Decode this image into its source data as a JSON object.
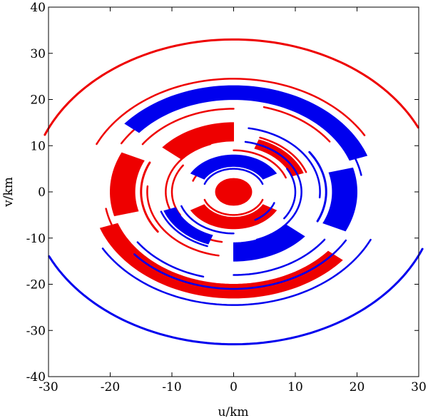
{
  "chart_data": {
    "type": "scatter",
    "title": "",
    "xlabel": "u/km",
    "ylabel": "v/km",
    "xlim": [
      -30,
      30
    ],
    "ylim": [
      -40,
      40
    ],
    "xticks": [
      -30,
      -20,
      -10,
      0,
      10,
      20,
      30
    ],
    "yticks": [
      -40,
      -30,
      -20,
      -10,
      0,
      10,
      20,
      30,
      40
    ],
    "xtick_labels": [
      "-30",
      "-20",
      "-10",
      "0",
      "10",
      "20",
      "30"
    ],
    "ytick_labels": [
      "-40",
      "-30",
      "-20",
      "-10",
      "0",
      "10",
      "20",
      "30",
      "40"
    ],
    "grid": false,
    "legend": "none",
    "colors": {
      "red": "#ee0000",
      "blue": "#0000ee"
    },
    "series": [
      {
        "color": "red",
        "arcs": [
          {
            "r": 33,
            "from": 25,
            "to": 158,
            "w": 3
          },
          {
            "r": 24.5,
            "from": 30,
            "to": 155,
            "w": 2.5
          },
          {
            "r": 21,
            "from": 40,
            "to": 150,
            "w": 2.5
          },
          {
            "r": 21,
            "from": 190,
            "to": 215,
            "w": 2.5
          },
          {
            "r": 19,
            "from": 35,
            "to": 75,
            "w": 2.5
          },
          {
            "r": 18,
            "from": 90,
            "to": 145,
            "w": 2.5
          },
          {
            "r": 15,
            "from": 155,
            "to": 215,
            "w": 3
          },
          {
            "r": 14,
            "from": 175,
            "to": 260,
            "w": 2.5
          },
          {
            "r": 12.5,
            "from": 20,
            "to": 70,
            "w": 2.5
          },
          {
            "r": 11,
            "from": 110,
            "to": 260,
            "w": 2.5
          },
          {
            "r": 10,
            "from": 145,
            "to": 210,
            "w": 2.5
          },
          {
            "r": 9,
            "from": 20,
            "to": 90,
            "w": 2.5
          },
          {
            "r": 7,
            "from": 120,
            "to": 160,
            "w": 2.5
          },
          {
            "r": 5,
            "from": 200,
            "to": 340,
            "w": 2.5
          },
          {
            "r": 2.5,
            "from": 0,
            "to": 360,
            "w": 3
          }
        ],
        "bands": [
          {
            "r_in": 20,
            "r_out": 23,
            "from": 200,
            "to": 320
          },
          {
            "r_in": 16,
            "r_out": 20,
            "from": 155,
            "to": 195
          },
          {
            "r_in": 11,
            "r_out": 15,
            "from": 90,
            "to": 140
          },
          {
            "r_in": 10,
            "r_out": 12,
            "from": 20,
            "to": 70
          },
          {
            "r_in": 5.5,
            "r_out": 8,
            "from": 210,
            "to": 330
          },
          {
            "r_in": 0,
            "r_out": 3,
            "from": 0,
            "to": 360
          }
        ]
      },
      {
        "color": "blue",
        "arcs": [
          {
            "r": 33,
            "from": 205,
            "to": 338,
            "w": 3
          },
          {
            "r": 24.5,
            "from": 210,
            "to": 335,
            "w": 2.5
          },
          {
            "r": 21,
            "from": 220,
            "to": 330,
            "w": 2.5
          },
          {
            "r": 21,
            "from": 10,
            "to": 35,
            "w": 2.5
          },
          {
            "r": 19,
            "from": 215,
            "to": 255,
            "w": 2.5
          },
          {
            "r": 18,
            "from": 270,
            "to": 325,
            "w": 2.5
          },
          {
            "r": 15,
            "from": 335,
            "to": 395,
            "w": 3
          },
          {
            "r": 14,
            "from": 355,
            "to": 440,
            "w": 2.5
          },
          {
            "r": 12.5,
            "from": 200,
            "to": 250,
            "w": 2.5
          },
          {
            "r": 11,
            "from": 290,
            "to": 440,
            "w": 2.5
          },
          {
            "r": 10,
            "from": 325,
            "to": 390,
            "w": 2.5
          },
          {
            "r": 9,
            "from": 200,
            "to": 270,
            "w": 2.5
          },
          {
            "r": 7,
            "from": 300,
            "to": 340,
            "w": 2.5
          },
          {
            "r": 5,
            "from": 20,
            "to": 160,
            "w": 2.5
          }
        ],
        "bands": [
          {
            "r_in": 20,
            "r_out": 23,
            "from": 20,
            "to": 140
          },
          {
            "r_in": 16,
            "r_out": 20,
            "from": 335,
            "to": 375
          },
          {
            "r_in": 11,
            "r_out": 15,
            "from": 270,
            "to": 320
          },
          {
            "r_in": 10,
            "r_out": 12,
            "from": 200,
            "to": 250
          },
          {
            "r_in": 5.5,
            "r_out": 8,
            "from": 30,
            "to": 150
          }
        ]
      }
    ]
  }
}
